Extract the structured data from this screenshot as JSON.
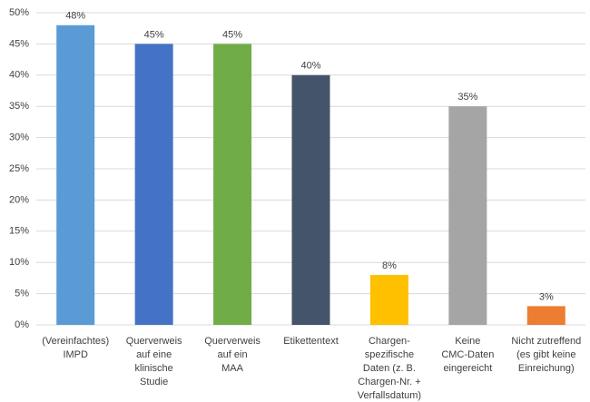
{
  "chart_data": {
    "type": "bar",
    "categories": [
      [
        "(Vereinfachtes)",
        "IMPD"
      ],
      [
        "Querverweis",
        "auf eine",
        "klinische",
        "Studie"
      ],
      [
        "Querverweis",
        "auf ein",
        "MAA"
      ],
      [
        "Etikettentext"
      ],
      [
        "Chargen-",
        "spezifische",
        "Daten (z. B.",
        "Chargen-Nr. +",
        "Verfallsdatum)"
      ],
      [
        "Keine",
        "CMC-Daten",
        "eingereicht"
      ],
      [
        "Nicht zutreffend",
        "(es gibt keine",
        "Einreichung)"
      ]
    ],
    "values": [
      48,
      45,
      45,
      40,
      8,
      35,
      3
    ],
    "value_labels": [
      "48%",
      "45%",
      "45%",
      "40%",
      "8%",
      "35%",
      "3%"
    ],
    "colors": [
      "#5b9bd5",
      "#4472c4",
      "#70ad47",
      "#44546a",
      "#ffc000",
      "#a5a5a5",
      "#ed7d31"
    ],
    "ylim": [
      0,
      50
    ],
    "yticks": [
      {
        "value": 0,
        "label": "0%"
      },
      {
        "value": 5,
        "label": "5%"
      },
      {
        "value": 10,
        "label": "10%"
      },
      {
        "value": 15,
        "label": "15%"
      },
      {
        "value": 20,
        "label": "20%"
      },
      {
        "value": 25,
        "label": "25%"
      },
      {
        "value": 30,
        "label": "30%"
      },
      {
        "value": 35,
        "label": "35%"
      },
      {
        "value": 40,
        "label": "40%"
      },
      {
        "value": 45,
        "label": "45%"
      },
      {
        "value": 50,
        "label": "50%"
      }
    ],
    "grid": true
  }
}
